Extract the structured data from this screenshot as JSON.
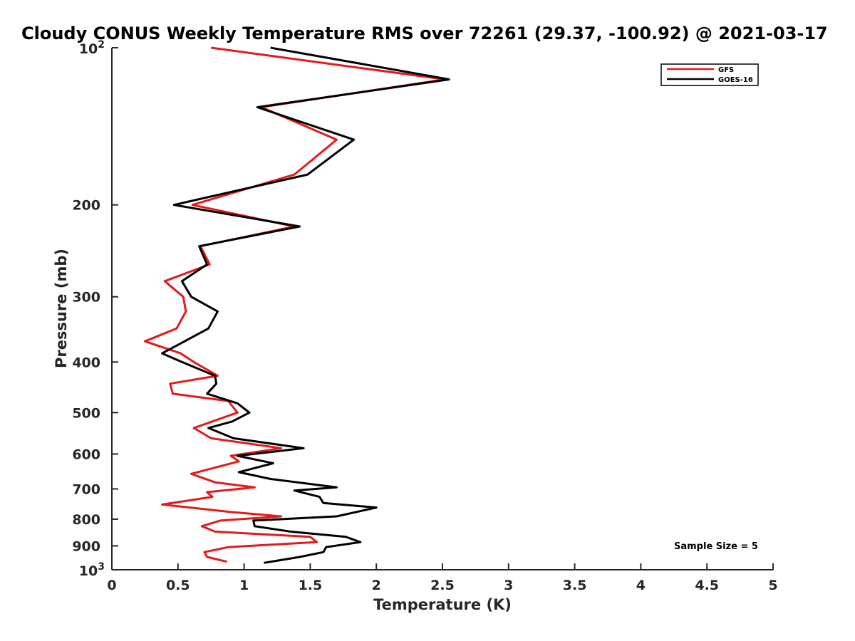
{
  "chart_data": {
    "type": "line",
    "title": "Cloudy CONUS Weekly Temperature RMS over 72261 (29.37, -100.92) @ 2021-03-17",
    "xlabel": "Temperature (K)",
    "ylabel": "Pressure (mb)",
    "xlim": [
      0,
      5
    ],
    "ylim": [
      100,
      1000
    ],
    "y_scale": "log",
    "y_reversed": true,
    "x_ticks": [
      0,
      0.5,
      1,
      1.5,
      2,
      2.5,
      3,
      3.5,
      4,
      4.5,
      5
    ],
    "x_tick_labels": [
      "0",
      "0.5",
      "1",
      "1.5",
      "2",
      "2.5",
      "3",
      "3.5",
      "4",
      "4.5",
      "5"
    ],
    "y_ticks": [
      200,
      300,
      400,
      500,
      600,
      700,
      800,
      900
    ],
    "y_tick_labels": [
      "200",
      "300",
      "400",
      "500",
      "600",
      "700",
      "800",
      "900"
    ],
    "y_limit_labels": [
      {
        "value": 100,
        "base": "10",
        "exp": "2"
      },
      {
        "value": 1000,
        "base": "10",
        "exp": "3"
      }
    ],
    "grid": false,
    "legend_position": "top-right",
    "series": [
      {
        "name": "GFS",
        "color": "#e41a1c",
        "points": [
          [
            0.75,
            100
          ],
          [
            2.52,
            115
          ],
          [
            1.13,
            130
          ],
          [
            1.7,
            150
          ],
          [
            1.38,
            175
          ],
          [
            0.61,
            200
          ],
          [
            1.38,
            220
          ],
          [
            0.67,
            240
          ],
          [
            0.74,
            260
          ],
          [
            0.4,
            280
          ],
          [
            0.54,
            300
          ],
          [
            0.56,
            320
          ],
          [
            0.49,
            345
          ],
          [
            0.25,
            365
          ],
          [
            0.52,
            385
          ],
          [
            0.62,
            400
          ],
          [
            0.8,
            425
          ],
          [
            0.44,
            440
          ],
          [
            0.46,
            460
          ],
          [
            0.88,
            475
          ],
          [
            0.95,
            500
          ],
          [
            0.62,
            535
          ],
          [
            0.75,
            560
          ],
          [
            1.28,
            585
          ],
          [
            0.9,
            605
          ],
          [
            0.96,
            620
          ],
          [
            0.6,
            655
          ],
          [
            0.78,
            680
          ],
          [
            1.08,
            695
          ],
          [
            0.72,
            710
          ],
          [
            0.76,
            725
          ],
          [
            0.38,
            750
          ],
          [
            0.9,
            775
          ],
          [
            1.28,
            790
          ],
          [
            0.82,
            805
          ],
          [
            0.68,
            825
          ],
          [
            0.78,
            845
          ],
          [
            1.5,
            865
          ],
          [
            1.55,
            885
          ],
          [
            0.88,
            905
          ],
          [
            0.7,
            925
          ],
          [
            0.72,
            945
          ],
          [
            0.87,
            965
          ]
        ]
      },
      {
        "name": "GOES-16",
        "color": "#000000",
        "points": [
          [
            1.2,
            100
          ],
          [
            2.55,
            115
          ],
          [
            1.1,
            130
          ],
          [
            1.83,
            150
          ],
          [
            1.48,
            175
          ],
          [
            0.47,
            200
          ],
          [
            1.42,
            220
          ],
          [
            0.66,
            240
          ],
          [
            0.72,
            260
          ],
          [
            0.53,
            280
          ],
          [
            0.6,
            300
          ],
          [
            0.8,
            320
          ],
          [
            0.73,
            345
          ],
          [
            0.55,
            365
          ],
          [
            0.38,
            385
          ],
          [
            0.53,
            400
          ],
          [
            0.78,
            425
          ],
          [
            0.79,
            440
          ],
          [
            0.72,
            460
          ],
          [
            0.95,
            480
          ],
          [
            1.04,
            500
          ],
          [
            0.91,
            520
          ],
          [
            0.73,
            535
          ],
          [
            0.92,
            560
          ],
          [
            1.45,
            585
          ],
          [
            0.95,
            605
          ],
          [
            1.22,
            625
          ],
          [
            0.96,
            650
          ],
          [
            1.2,
            670
          ],
          [
            1.7,
            695
          ],
          [
            1.38,
            705
          ],
          [
            1.57,
            725
          ],
          [
            1.6,
            745
          ],
          [
            2.0,
            760
          ],
          [
            1.7,
            790
          ],
          [
            1.07,
            805
          ],
          [
            1.08,
            825
          ],
          [
            1.35,
            845
          ],
          [
            1.77,
            865
          ],
          [
            1.88,
            885
          ],
          [
            1.62,
            905
          ],
          [
            1.6,
            925
          ],
          [
            1.42,
            945
          ],
          [
            1.15,
            970
          ]
        ]
      }
    ],
    "annotations": [
      "Sample Size = 5"
    ]
  }
}
